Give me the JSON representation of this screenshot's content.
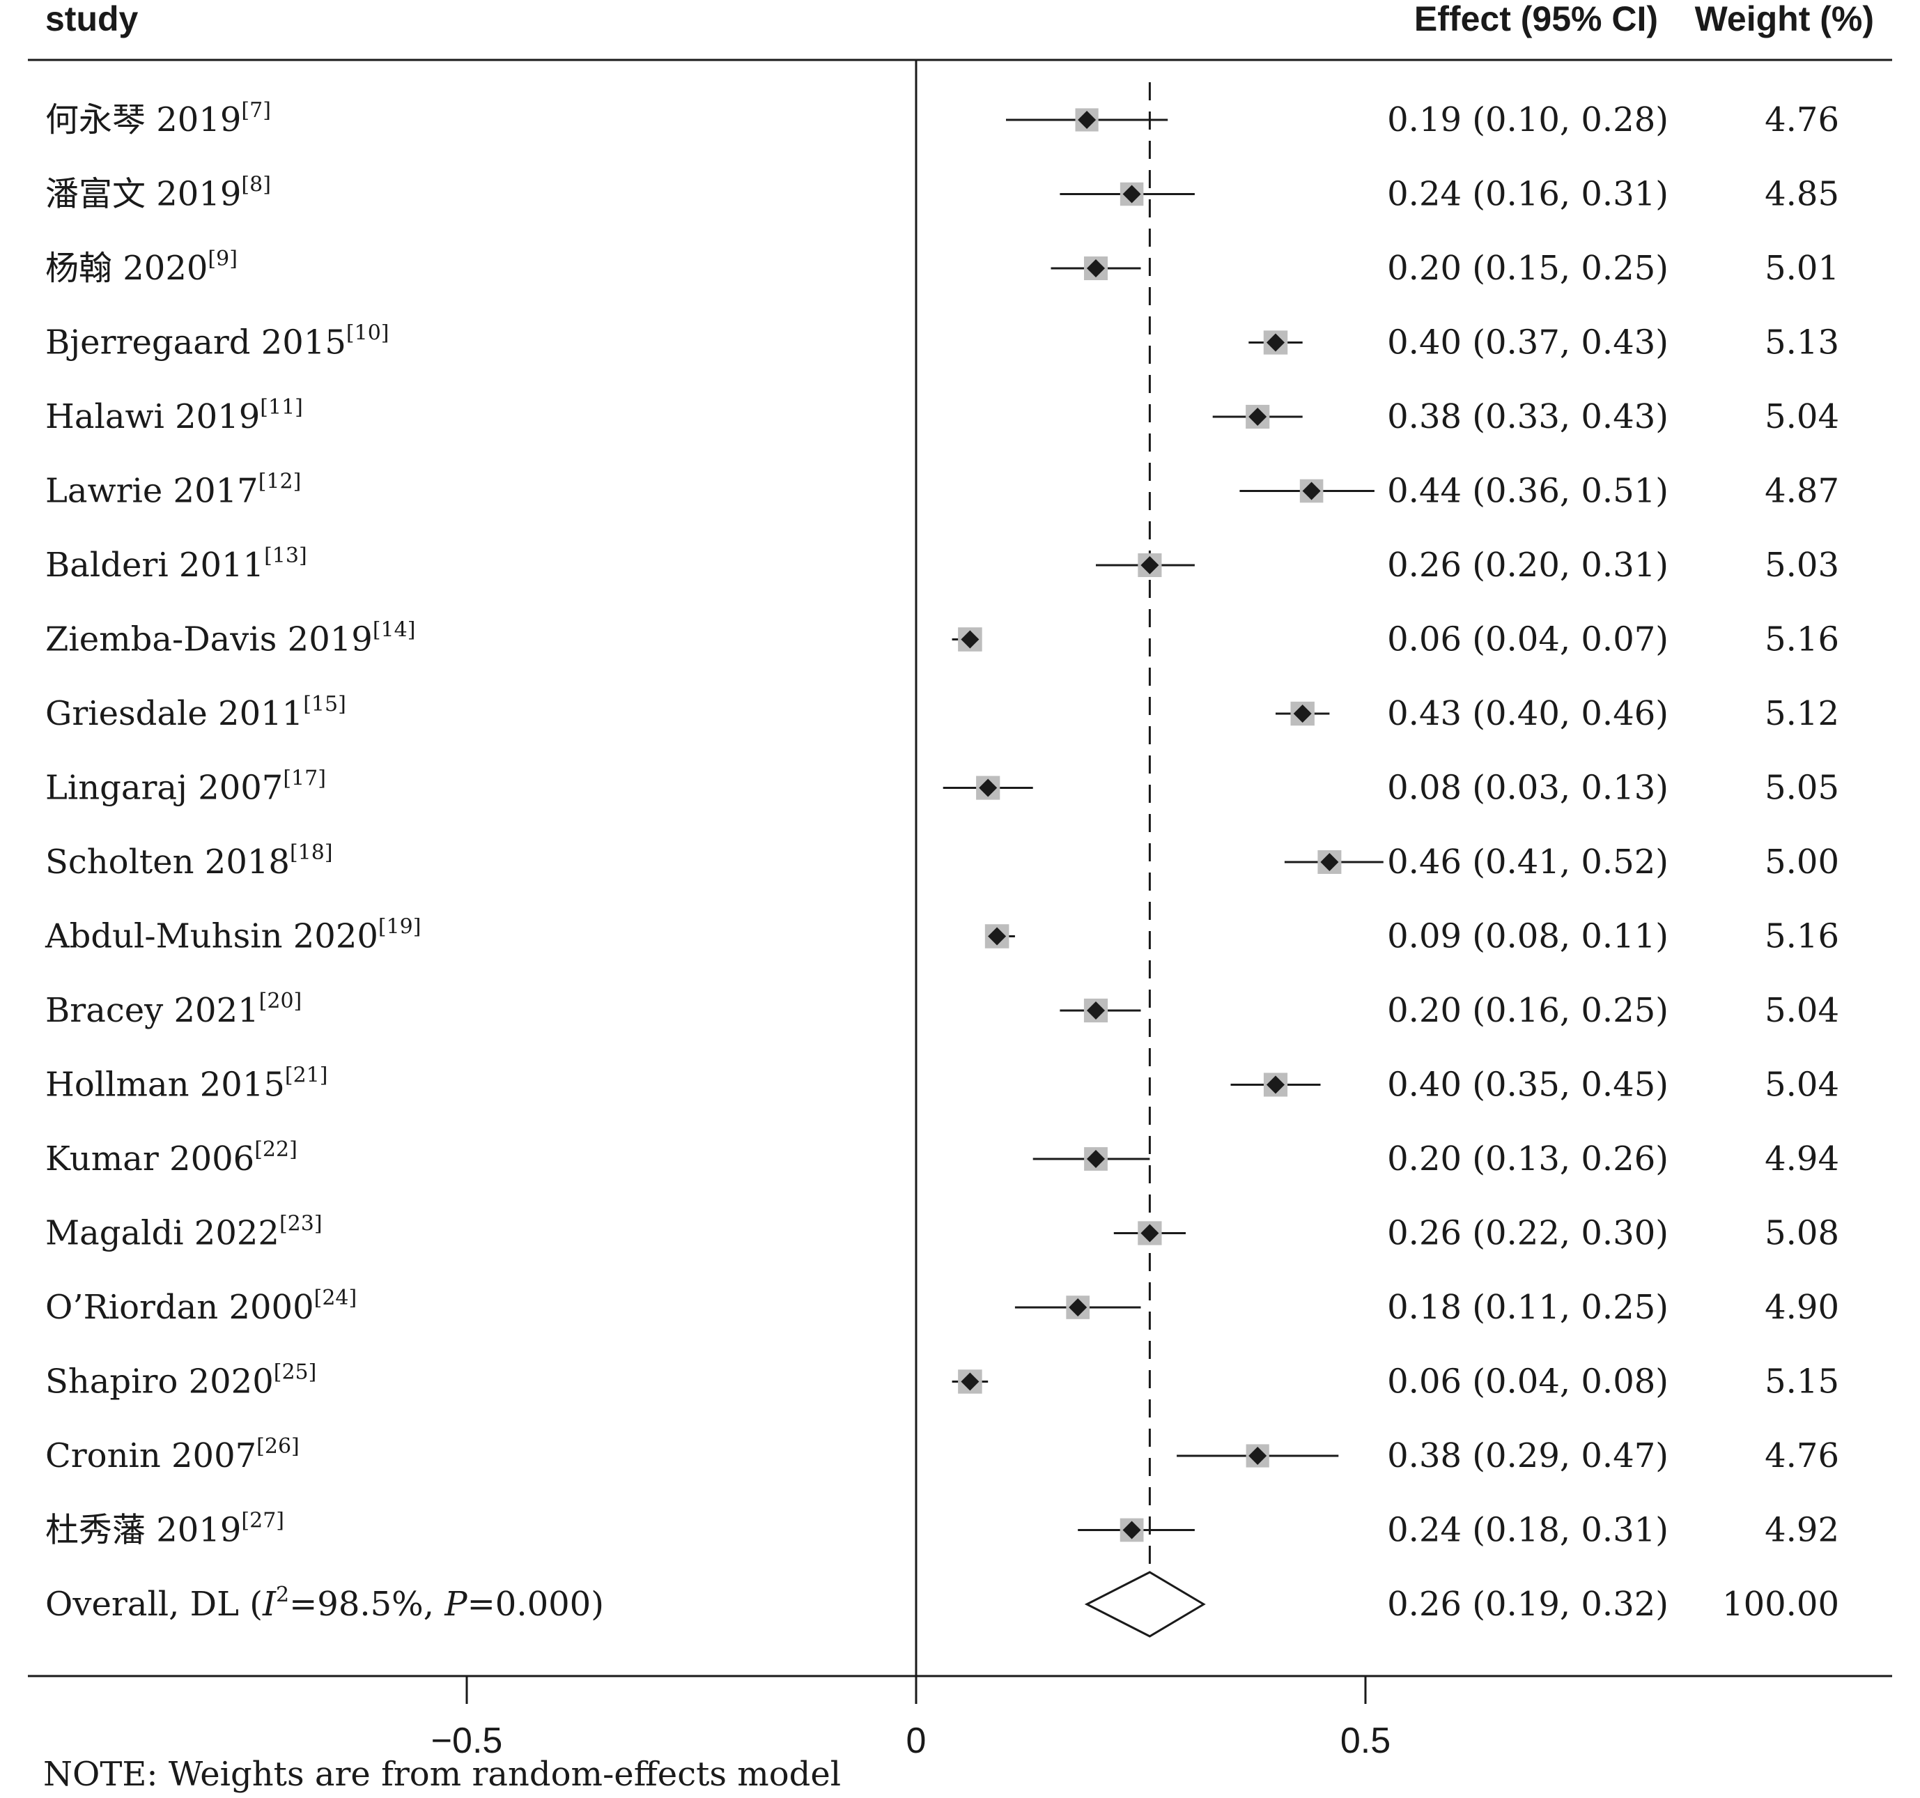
{
  "header": {
    "study": "study",
    "effect": "Effect (95% CI)",
    "weight": "Weight (%)"
  },
  "chart_data": {
    "type": "forest",
    "xlim": [
      -1.0,
      1.05
    ],
    "ticks": [
      {
        "value": -0.5,
        "label": "−0.5"
      },
      {
        "value": 0,
        "label": "0"
      },
      {
        "value": 0.5,
        "label": "0.5"
      }
    ],
    "reference_line": 0.26,
    "studies": [
      {
        "name": "何永琴 2019",
        "ref": "[7]",
        "effect": 0.19,
        "lo": 0.1,
        "hi": 0.28,
        "ci_text": "0.19 (0.10, 0.28)",
        "weight": "4.76"
      },
      {
        "name": "潘富文 2019",
        "ref": "[8]",
        "effect": 0.24,
        "lo": 0.16,
        "hi": 0.31,
        "ci_text": "0.24 (0.16, 0.31)",
        "weight": "4.85"
      },
      {
        "name": "杨翰 2020",
        "ref": "[9]",
        "effect": 0.2,
        "lo": 0.15,
        "hi": 0.25,
        "ci_text": "0.20 (0.15, 0.25)",
        "weight": "5.01"
      },
      {
        "name": "Bjerregaard 2015",
        "ref": "[10]",
        "effect": 0.4,
        "lo": 0.37,
        "hi": 0.43,
        "ci_text": "0.40 (0.37, 0.43)",
        "weight": "5.13"
      },
      {
        "name": "Halawi 2019",
        "ref": "[11]",
        "effect": 0.38,
        "lo": 0.33,
        "hi": 0.43,
        "ci_text": "0.38 (0.33, 0.43)",
        "weight": "5.04"
      },
      {
        "name": "Lawrie 2017",
        "ref": "[12]",
        "effect": 0.44,
        "lo": 0.36,
        "hi": 0.51,
        "ci_text": "0.44 (0.36, 0.51)",
        "weight": "4.87"
      },
      {
        "name": "Balderi 2011",
        "ref": "[13]",
        "effect": 0.26,
        "lo": 0.2,
        "hi": 0.31,
        "ci_text": "0.26 (0.20, 0.31)",
        "weight": "5.03"
      },
      {
        "name": "Ziemba-Davis 2019",
        "ref": "[14]",
        "effect": 0.06,
        "lo": 0.04,
        "hi": 0.07,
        "ci_text": "0.06 (0.04, 0.07)",
        "weight": "5.16"
      },
      {
        "name": "Griesdale 2011",
        "ref": "[15]",
        "effect": 0.43,
        "lo": 0.4,
        "hi": 0.46,
        "ci_text": "0.43 (0.40, 0.46)",
        "weight": "5.12"
      },
      {
        "name": "Lingaraj 2007",
        "ref": "[17]",
        "effect": 0.08,
        "lo": 0.03,
        "hi": 0.13,
        "ci_text": "0.08 (0.03, 0.13)",
        "weight": "5.05"
      },
      {
        "name": "Scholten 2018",
        "ref": "[18]",
        "effect": 0.46,
        "lo": 0.41,
        "hi": 0.52,
        "ci_text": "0.46 (0.41, 0.52)",
        "weight": "5.00"
      },
      {
        "name": "Abdul-Muhsin 2020",
        "ref": "[19]",
        "effect": 0.09,
        "lo": 0.08,
        "hi": 0.11,
        "ci_text": "0.09 (0.08, 0.11)",
        "weight": "5.16"
      },
      {
        "name": "Bracey 2021",
        "ref": "[20]",
        "effect": 0.2,
        "lo": 0.16,
        "hi": 0.25,
        "ci_text": "0.20 (0.16, 0.25)",
        "weight": "5.04"
      },
      {
        "name": "Hollman 2015",
        "ref": "[21]",
        "effect": 0.4,
        "lo": 0.35,
        "hi": 0.45,
        "ci_text": "0.40 (0.35, 0.45)",
        "weight": "5.04"
      },
      {
        "name": "Kumar 2006",
        "ref": "[22]",
        "effect": 0.2,
        "lo": 0.13,
        "hi": 0.26,
        "ci_text": "0.20 (0.13, 0.26)",
        "weight": "4.94"
      },
      {
        "name": "Magaldi 2022",
        "ref": "[23]",
        "effect": 0.26,
        "lo": 0.22,
        "hi": 0.3,
        "ci_text": "0.26 (0.22, 0.30)",
        "weight": "5.08"
      },
      {
        "name": "O’Riordan 2000",
        "ref": "[24]",
        "effect": 0.18,
        "lo": 0.11,
        "hi": 0.25,
        "ci_text": "0.18 (0.11, 0.25)",
        "weight": "4.90"
      },
      {
        "name": "Shapiro 2020",
        "ref": "[25]",
        "effect": 0.06,
        "lo": 0.04,
        "hi": 0.08,
        "ci_text": "0.06 (0.04, 0.08)",
        "weight": "5.15"
      },
      {
        "name": "Cronin 2007",
        "ref": "[26]",
        "effect": 0.38,
        "lo": 0.29,
        "hi": 0.47,
        "ci_text": "0.38 (0.29, 0.47)",
        "weight": "4.76"
      },
      {
        "name": "杜秀藩 2019",
        "ref": "[27]",
        "effect": 0.24,
        "lo": 0.18,
        "hi": 0.31,
        "ci_text": "0.24 (0.18, 0.31)",
        "weight": "4.92"
      }
    ],
    "overall": {
      "label_prefix": "Overall, DL (",
      "i2_symbol": "I",
      "i2_sup": "2",
      "i2_value": "=98.5%, ",
      "p_symbol": "P",
      "p_value": "=0.000)",
      "effect": 0.26,
      "lo": 0.19,
      "hi": 0.32,
      "ci_text": "0.26 (0.19, 0.32)",
      "weight": "100.00"
    },
    "colors": {
      "marker": "#1a1a1a",
      "weight_box": "#bdbdbd",
      "line": "#1a1a1a"
    }
  },
  "note": "NOTE: Weights are from random-effects model"
}
